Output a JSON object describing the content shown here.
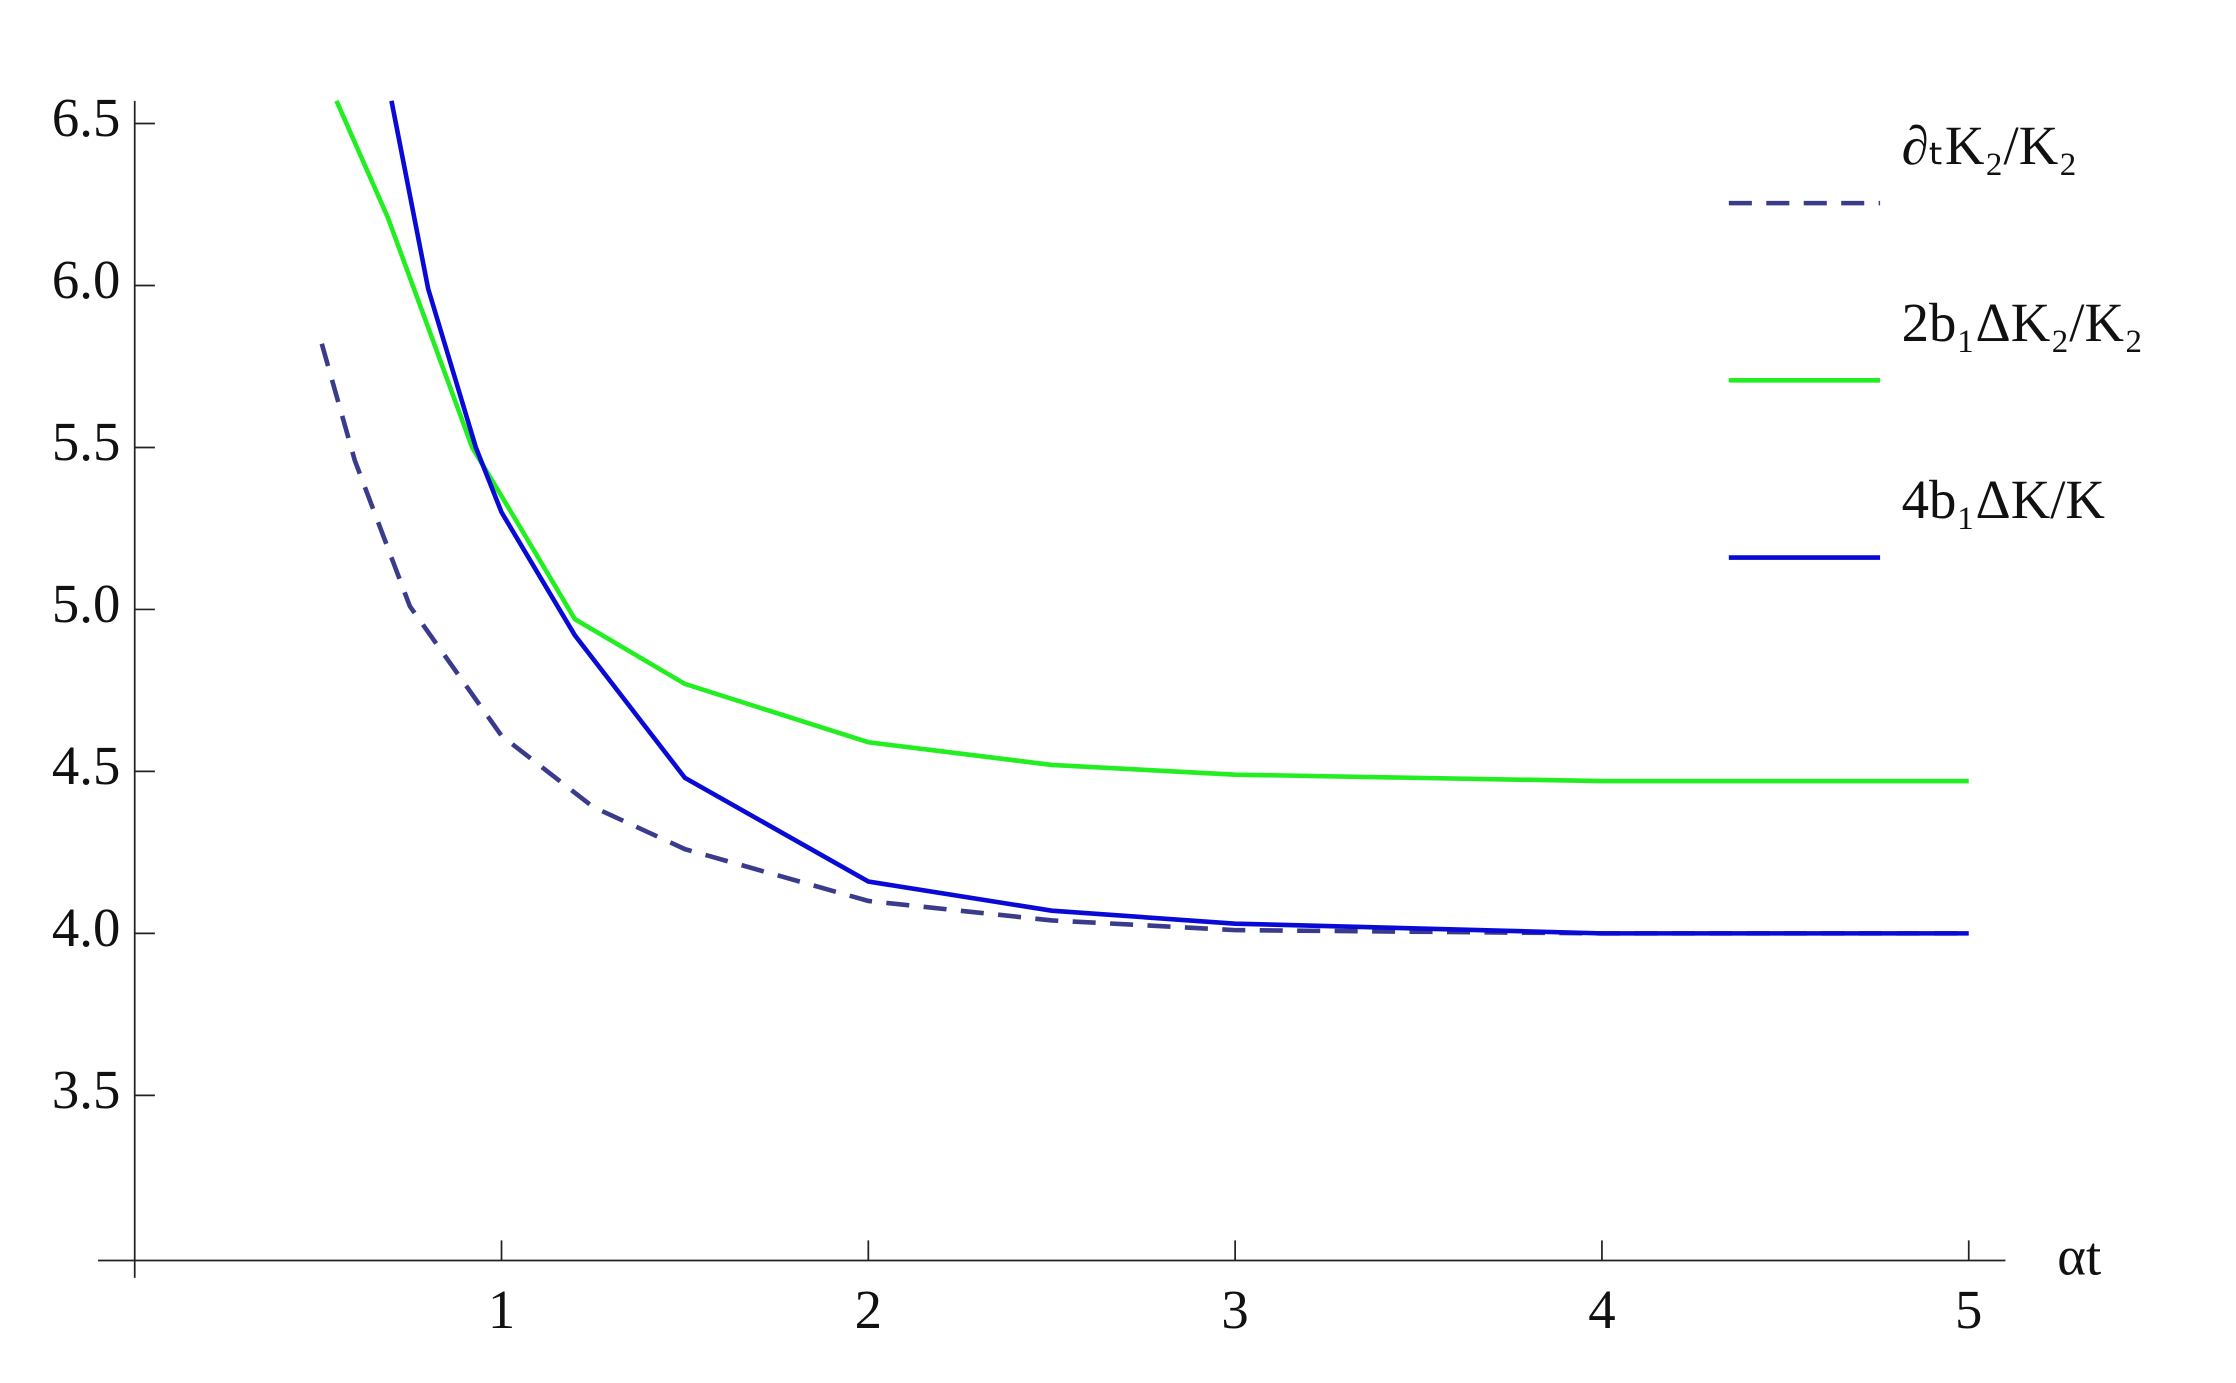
{
  "chart_data": {
    "type": "line",
    "x_label": "αt",
    "xlim": [
      -0.1,
      5.1
    ],
    "ylim": [
      2.99,
      6.57
    ],
    "xticks": [
      1,
      2,
      3,
      4,
      5
    ],
    "yticks": [
      3.5,
      {
        "value": 4,
        "label": "4.0"
      },
      4.5,
      {
        "value": 5,
        "label": "5.0"
      },
      5.5,
      {
        "value": 6,
        "label": "6.0"
      },
      6.5
    ],
    "series": [
      {
        "name": "∂ₜK₂/K₂",
        "color": "#3b3b8c",
        "dashed": true,
        "x": [
          0.51,
          0.6,
          0.75,
          1,
          1.25,
          1.5,
          2,
          2.5,
          3,
          4,
          5
        ],
        "values": [
          5.82,
          5.46,
          5.01,
          4.61,
          4.39,
          4.26,
          4.1,
          4.04,
          4.01,
          4.0,
          4.0
        ]
      },
      {
        "name": "2b₁ΔK₂/K₂",
        "color": "#22ee22",
        "dashed": false,
        "x": [
          0.55,
          0.69,
          0.92,
          1,
          1.2,
          1.5,
          2,
          2.5,
          3,
          4,
          5
        ],
        "values": [
          6.57,
          6.21,
          5.5,
          5.35,
          4.97,
          4.77,
          4.59,
          4.52,
          4.49,
          4.47,
          4.47
        ]
      },
      {
        "name": "4b₁ΔK/K",
        "color": "#0a0ad6",
        "dashed": false,
        "x": [
          0.7,
          0.8,
          0.93,
          1,
          1.2,
          1.5,
          2,
          2.5,
          3,
          4,
          5
        ],
        "values": [
          6.57,
          5.99,
          5.5,
          5.3,
          4.92,
          4.48,
          4.16,
          4.07,
          4.03,
          4.0,
          4.0
        ]
      }
    ]
  }
}
